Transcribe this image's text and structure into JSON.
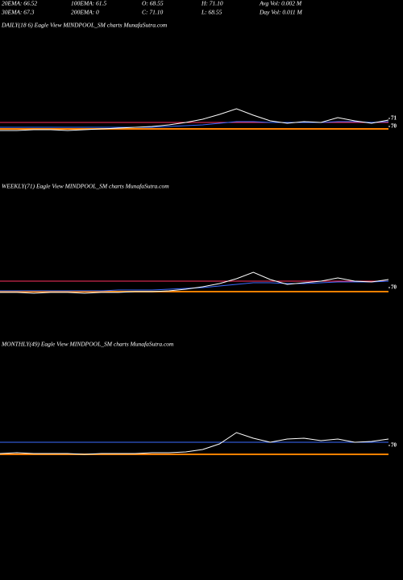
{
  "header": {
    "rows": [
      [
        "20EMA: 66.52",
        "100EMA: 61.5",
        "O: 68.55",
        "H: 71.10",
        "Avg Vol: 0.002  M"
      ],
      [
        "30EMA: 67.3",
        "200EMA: 0",
        "C: 71.10",
        "L: 68.55",
        "Day Vol: 0.011  M"
      ]
    ]
  },
  "chart_data": [
    {
      "type": "line",
      "title": "DAILY(18           6) Eagle  View  MINDPOOL_SM charts MunafaSutra.com",
      "ylim": [
        64,
        82
      ],
      "yticks": [
        70,
        71
      ],
      "series": [
        {
          "color": "#ff8000",
          "values": [
            69.7,
            69.7,
            69.7,
            69.7,
            69.7,
            69.7,
            69.7,
            69.7,
            69.7,
            69.7,
            69.7,
            69.7,
            69.7,
            69.7,
            69.7,
            69.7,
            69.7,
            69.7,
            69.7,
            69.7,
            69.7,
            69.7,
            69.7,
            69.7
          ]
        },
        {
          "color": "#ff3060",
          "values": [
            70.5,
            70.5,
            70.5,
            70.5,
            70.5,
            70.5,
            70.5,
            70.5,
            70.5,
            70.5,
            70.5,
            70.5,
            70.5,
            70.5,
            70.5,
            70.5,
            70.5,
            70.5,
            70.5,
            70.5,
            70.5,
            70.5,
            70.5,
            70.5
          ]
        },
        {
          "color": "#3a6bff",
          "values": [
            69.9,
            69.9,
            69.9,
            69.9,
            69.9,
            69.9,
            69.9,
            69.9,
            69.9,
            69.9,
            70.0,
            70.1,
            70.2,
            70.4,
            70.6,
            70.6,
            70.5,
            70.5,
            70.5,
            70.5,
            70.6,
            70.6,
            70.5,
            70.6
          ]
        },
        {
          "color": "#ffffff",
          "values": [
            69.5,
            69.5,
            69.6,
            69.6,
            69.5,
            69.6,
            69.7,
            69.8,
            69.9,
            70.0,
            70.2,
            70.5,
            70.9,
            71.5,
            72.2,
            71.4,
            70.7,
            70.4,
            70.6,
            70.5,
            71.1,
            70.7,
            70.4,
            70.8
          ]
        }
      ]
    },
    {
      "type": "line",
      "title": "WEEKLY(71) Eagle  View  MINDPOOL_SM charts MunafaSutra.com",
      "ylim": [
        64,
        82
      ],
      "yticks": [
        70
      ],
      "series": [
        {
          "color": "#ff8000",
          "values": [
            69.5,
            69.5,
            69.5,
            69.5,
            69.5,
            69.5,
            69.5,
            69.5,
            69.5,
            69.5,
            69.5,
            69.5,
            69.5,
            69.5,
            69.5,
            69.5,
            69.5,
            69.5,
            69.5,
            69.5,
            69.5,
            69.5,
            69.5,
            69.5
          ]
        },
        {
          "color": "#ff3060",
          "values": [
            70.8,
            70.8,
            70.8,
            70.8,
            70.8,
            70.8,
            70.8,
            70.8,
            70.8,
            70.8,
            70.8,
            70.8,
            70.8,
            70.8,
            70.8,
            70.8,
            70.8,
            70.8,
            70.8,
            70.8,
            70.8,
            70.8,
            70.8,
            70.8
          ]
        },
        {
          "color": "#3a6bff",
          "values": [
            69.6,
            69.6,
            69.6,
            69.6,
            69.6,
            69.6,
            69.6,
            69.7,
            69.7,
            69.7,
            69.8,
            69.9,
            70.0,
            70.2,
            70.4,
            70.6,
            70.6,
            70.5,
            70.5,
            70.6,
            70.7,
            70.7,
            70.7,
            70.8
          ]
        },
        {
          "color": "#ffffff",
          "values": [
            69.4,
            69.4,
            69.3,
            69.4,
            69.4,
            69.3,
            69.4,
            69.4,
            69.5,
            69.5,
            69.6,
            69.8,
            70.1,
            70.5,
            71.1,
            71.9,
            71.0,
            70.4,
            70.6,
            70.8,
            71.2,
            70.8,
            70.7,
            71.0
          ]
        }
      ]
    },
    {
      "type": "line",
      "title": "MONTHLY(49) Eagle  View  MINDPOOL_SM charts MunafaSutra.com",
      "ylim": [
        64,
        82
      ],
      "yticks": [
        70
      ],
      "series": [
        {
          "color": "#ff8000",
          "values": [
            68.9,
            68.9,
            68.9,
            68.9,
            68.9,
            68.9,
            68.9,
            68.9,
            68.9,
            68.9,
            68.9,
            68.9,
            68.9,
            68.9,
            68.9,
            68.9,
            68.9,
            68.9,
            68.9,
            68.9,
            68.9,
            68.9,
            68.9,
            68.9
          ]
        },
        {
          "color": "#3a6bff",
          "values": [
            70.4,
            70.4,
            70.4,
            70.4,
            70.4,
            70.4,
            70.4,
            70.4,
            70.4,
            70.4,
            70.4,
            70.4,
            70.4,
            70.4,
            70.4,
            70.4,
            70.4,
            70.4,
            70.4,
            70.4,
            70.4,
            70.4,
            70.4,
            70.4
          ]
        },
        {
          "color": "#ffffff",
          "values": [
            69.0,
            69.1,
            69.0,
            69.0,
            69.0,
            68.9,
            69.0,
            69.0,
            69.0,
            69.1,
            69.1,
            69.2,
            69.5,
            70.2,
            71.6,
            70.9,
            70.4,
            70.8,
            70.9,
            70.6,
            70.8,
            70.4,
            70.5,
            70.8
          ]
        }
      ]
    }
  ]
}
